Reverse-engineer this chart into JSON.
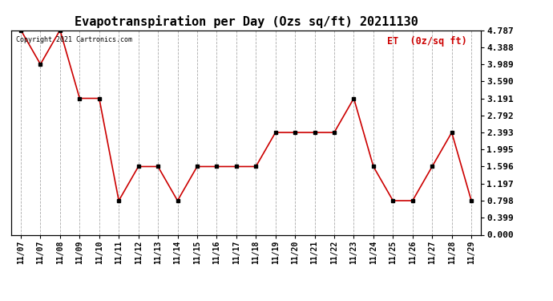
{
  "title": "Evapotranspiration per Day (Ozs sq/ft) 20211130",
  "legend_label": "ET  (0z/sq ft)",
  "copyright_text": "Copyright 2021 Cartronics.com",
  "x_labels": [
    "11/07",
    "11/07",
    "11/08",
    "11/09",
    "11/10",
    "11/11",
    "11/12",
    "11/13",
    "11/14",
    "11/15",
    "11/16",
    "11/17",
    "11/18",
    "11/19",
    "11/20",
    "11/21",
    "11/22",
    "11/23",
    "11/24",
    "11/25",
    "11/26",
    "11/27",
    "11/28",
    "11/29"
  ],
  "y_values": [
    4.787,
    3.989,
    4.787,
    3.191,
    3.191,
    0.798,
    1.596,
    1.596,
    0.798,
    1.596,
    1.596,
    1.596,
    1.596,
    2.393,
    2.393,
    2.393,
    2.393,
    3.191,
    1.596,
    0.798,
    0.798,
    1.596,
    2.393,
    0.798
  ],
  "line_color": "#cc0000",
  "marker_color": "#000000",
  "marker_size": 3,
  "line_width": 1.2,
  "yticks": [
    0.0,
    0.399,
    0.798,
    1.197,
    1.596,
    1.995,
    2.393,
    2.792,
    3.191,
    3.59,
    3.989,
    4.388,
    4.787
  ],
  "ylim": [
    0.0,
    4.787
  ],
  "bg_color": "#ffffff",
  "grid_color": "#aaaaaa",
  "title_fontsize": 11,
  "legend_color": "#cc0000",
  "copyright_color": "#000000"
}
